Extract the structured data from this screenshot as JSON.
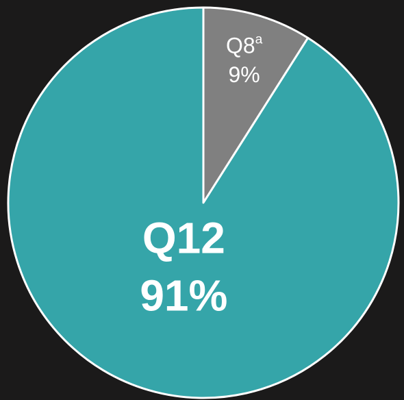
{
  "chart_data": {
    "type": "pie",
    "categories": [
      "Q8",
      "Q12"
    ],
    "footnote_markers": [
      "a",
      null
    ],
    "values": [
      9,
      91
    ],
    "value_labels": [
      "9%",
      "91%"
    ],
    "colors": [
      "#808080",
      "#35a5a9"
    ],
    "start_angle": "top",
    "direction": "clockwise"
  }
}
